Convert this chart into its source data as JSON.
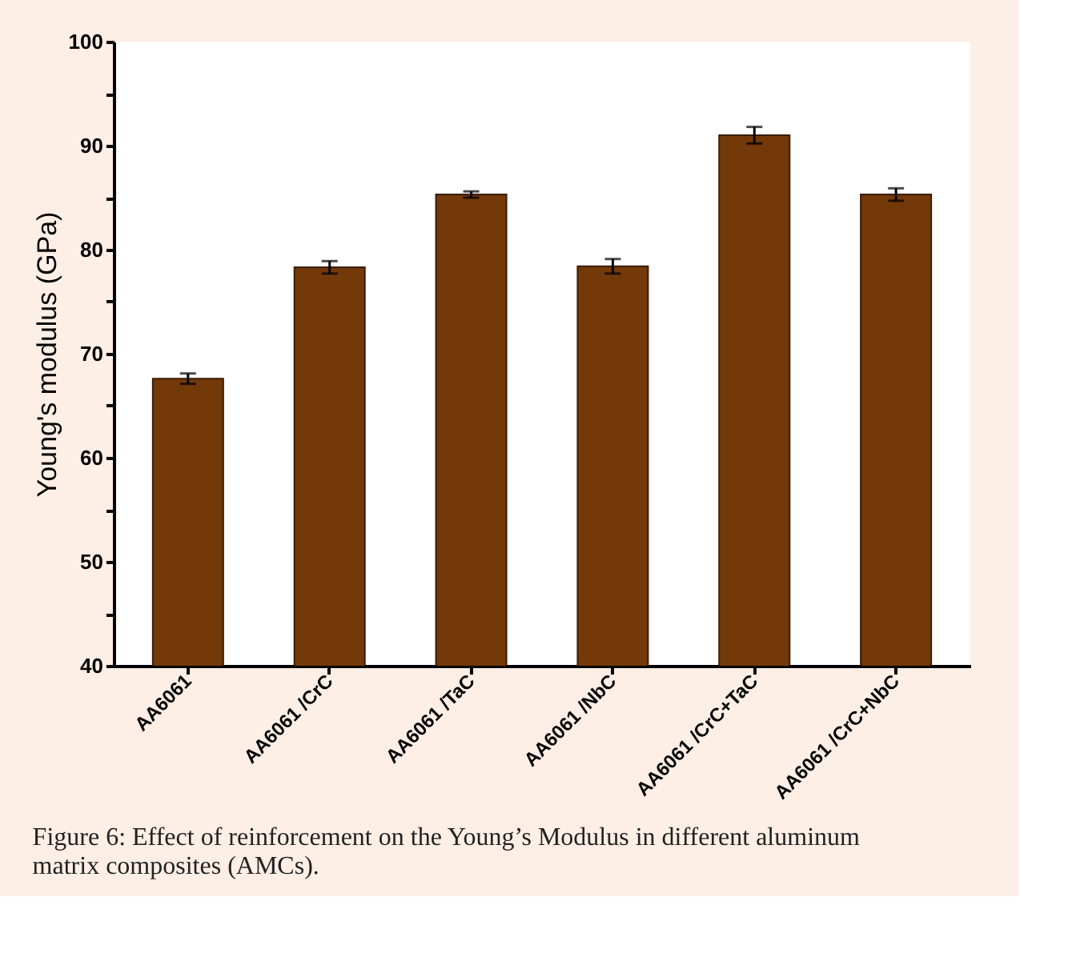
{
  "chart_data": {
    "type": "bar",
    "categories": [
      "AA6061",
      "AA6061 /CrC",
      "AA6061 /TaC",
      "AA6061 /NbC",
      "AA6061 /CrC+TaC",
      "AA6061 /CrC+NbC"
    ],
    "values": [
      67.6,
      78.3,
      85.3,
      78.4,
      91.0,
      85.3
    ],
    "errors": [
      0.5,
      0.6,
      0.3,
      0.7,
      0.8,
      0.6
    ],
    "color": "#743909",
    "ylabel": "Young's modulus (GPa)",
    "ylim": [
      40,
      100
    ],
    "yticks": [
      40,
      {
        "value": 45,
        "label": null
      },
      50,
      {
        "value": 55,
        "label": null
      },
      60,
      {
        "value": 65,
        "label": null
      },
      70,
      {
        "value": 75,
        "label": null
      },
      80,
      {
        "value": 85,
        "label": null
      },
      90,
      {
        "value": 95,
        "label": null
      },
      100
    ],
    "grid": false,
    "annotations": [
      "Figure 6: Effect of reinforcement on the Young’s Modulus in different aluminum matrix composites (AMCs)."
    ]
  }
}
